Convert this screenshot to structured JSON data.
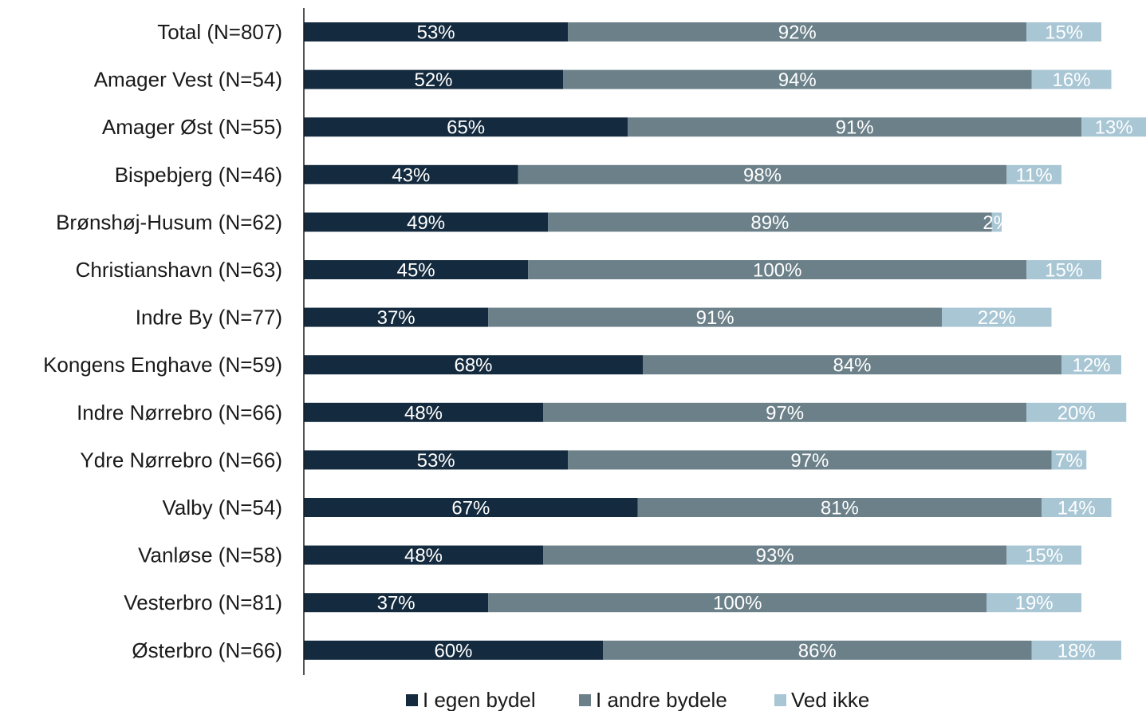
{
  "chart_data": {
    "type": "bar",
    "orientation": "horizontal",
    "stacked": true,
    "categories": [
      "Total (N=807)",
      "Amager Vest (N=54)",
      "Amager Øst (N=55)",
      "Bispebjerg (N=46)",
      "Brønshøj-Husum (N=62)",
      "Christianshavn (N=63)",
      "Indre By (N=77)",
      "Kongens Enghave (N=59)",
      "Indre Nørrebro (N=66)",
      "Ydre Nørrebro (N=66)",
      "Valby (N=54)",
      "Vanløse (N=58)",
      "Vesterbro (N=81)",
      "Østerbro (N=66)"
    ],
    "series": [
      {
        "name": "I egen bydel",
        "color": "#142a3e",
        "values": [
          53,
          52,
          65,
          43,
          49,
          45,
          37,
          68,
          48,
          53,
          67,
          48,
          37,
          60
        ],
        "labels": [
          "53%",
          "52%",
          "65%",
          "43%",
          "49%",
          "45%",
          "37%",
          "68%",
          "48%",
          "53%",
          "67%",
          "48%",
          "37%",
          "60%"
        ]
      },
      {
        "name": "I andre bydele",
        "color": "#6b8089",
        "values": [
          92,
          94,
          91,
          98,
          89,
          100,
          91,
          84,
          97,
          97,
          81,
          93,
          100,
          86
        ],
        "labels": [
          "92%",
          "94%",
          "91%",
          "98%",
          "89%",
          "100%",
          "91%",
          "84%",
          "97%",
          "97%",
          "81%",
          "93%",
          "100%",
          "86%"
        ]
      },
      {
        "name": "Ved ikke",
        "color": "#a8c6d4",
        "values": [
          15,
          16,
          13,
          11,
          2,
          15,
          22,
          12,
          20,
          7,
          14,
          15,
          19,
          18
        ],
        "labels": [
          "15%",
          "16%",
          "13%",
          "11%",
          "2%",
          "15%",
          "22%",
          "12%",
          "20%",
          "7%",
          "14%",
          "15%",
          "19%",
          "18%"
        ]
      }
    ],
    "legend_position": "bottom",
    "grid": false
  }
}
